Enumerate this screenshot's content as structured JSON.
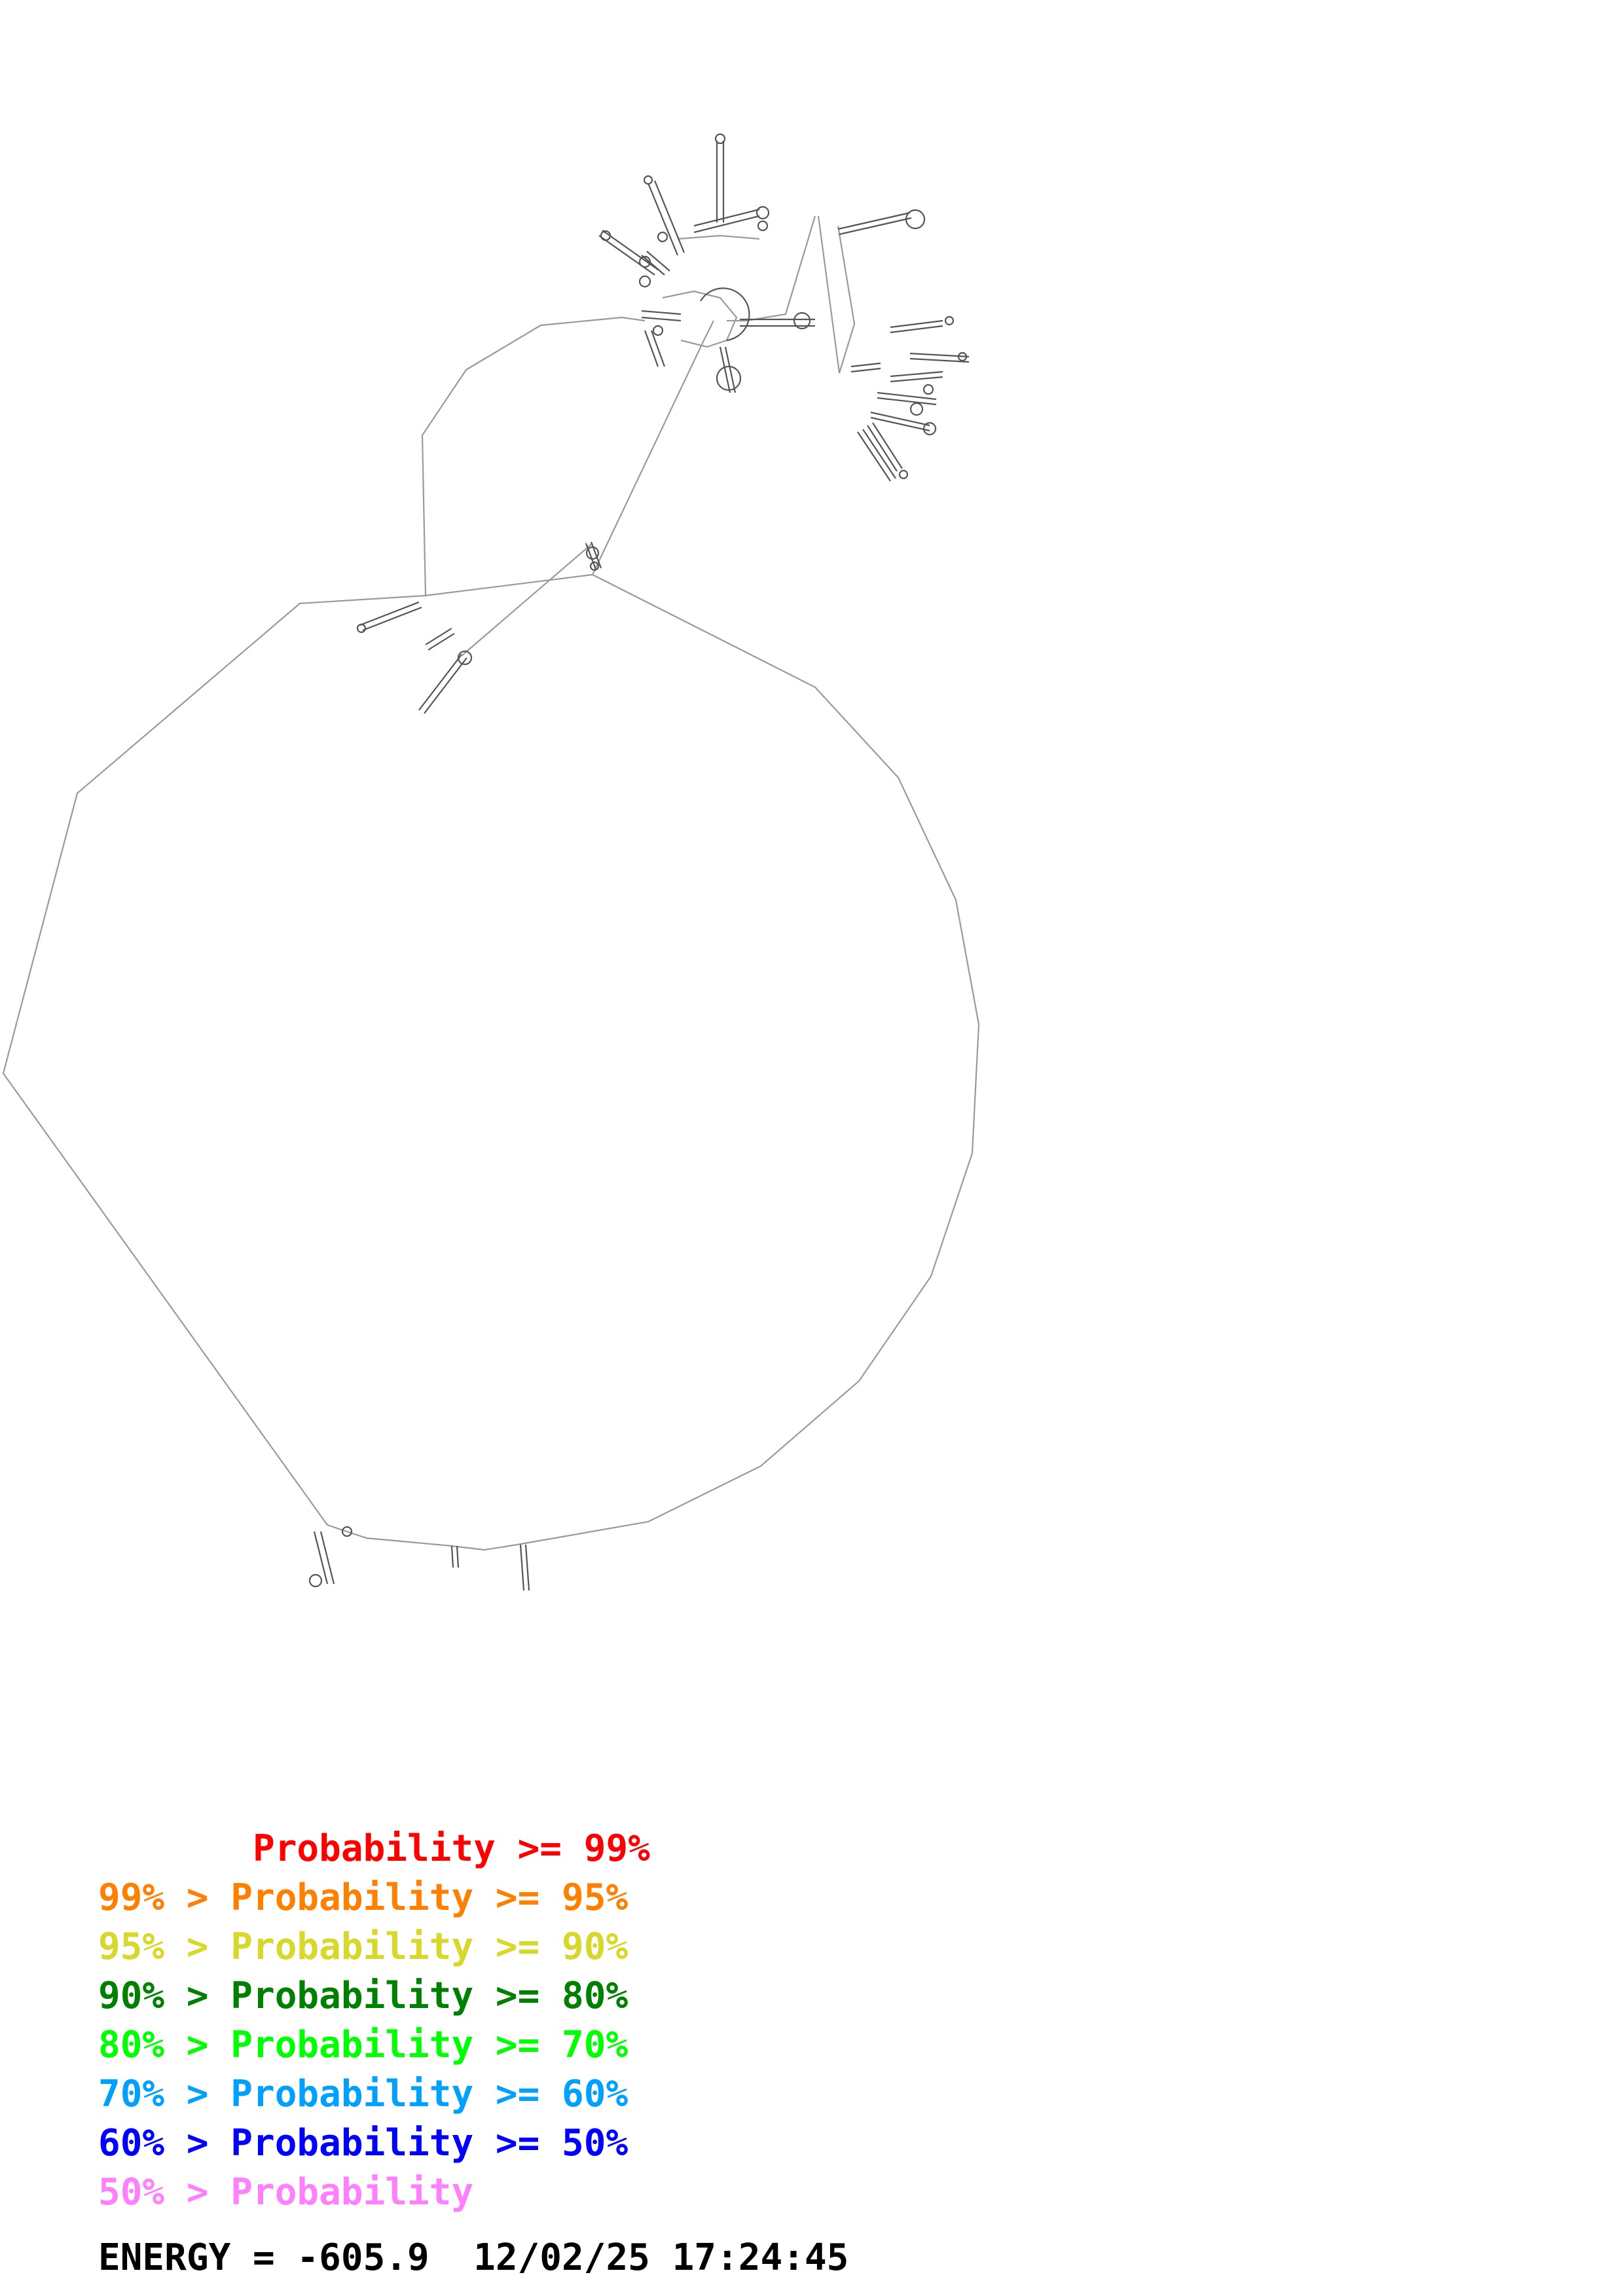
{
  "legend": {
    "entries": [
      {
        "text": "       Probability >= 99%",
        "color": "#ff0000"
      },
      {
        "text": "99% > Probability >= 95%",
        "color": "#ff8000"
      },
      {
        "text": "95% > Probability >= 90%",
        "color": "#d8d82a"
      },
      {
        "text": "90% > Probability >= 80%",
        "color": "#008000"
      },
      {
        "text": "80% > Probability >= 70%",
        "color": "#00ff00"
      },
      {
        "text": "70% > Probability >= 60%",
        "color": "#00a0ff"
      },
      {
        "text": "60% > Probability >= 50%",
        "color": "#0000ff"
      },
      {
        "text": "50% > Probability",
        "color": "#ff80ff"
      }
    ]
  },
  "footer": {
    "energy_label": "ENERGY = -605.9  12/02/25 17:24:45"
  },
  "colors": {
    "backbone": "#9a9a9a",
    "structure": "#555555"
  }
}
